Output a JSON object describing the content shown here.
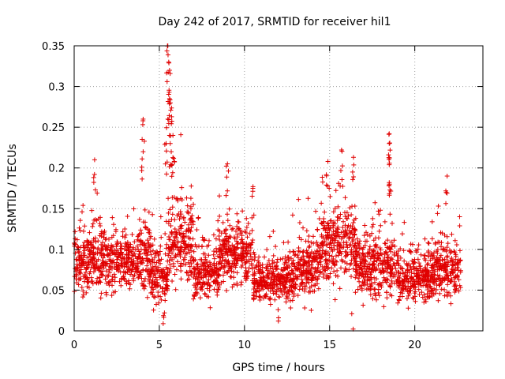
{
  "chart_data": {
    "type": "scatter",
    "title": "Day 242 of 2017, SRMTID for receiver hil1",
    "xlabel": "GPS time / hours",
    "ylabel": "SRMTID / TECUs",
    "xlim": [
      0,
      24
    ],
    "ylim": [
      0,
      0.35
    ],
    "xticks": [
      0,
      5,
      10,
      15,
      20
    ],
    "xtick_labels": [
      "0",
      "5",
      "10",
      "15",
      "20"
    ],
    "yticks": [
      0,
      0.05,
      0.1,
      0.15,
      0.2,
      0.25,
      0.3,
      0.35
    ],
    "ytick_labels": [
      "0",
      "0.05",
      "0.1",
      "0.15",
      "0.2",
      "0.25",
      "0.3",
      "0.35"
    ],
    "grid": true,
    "marker": "+",
    "color": "#e00000",
    "series": [
      {
        "name": "SRMTID",
        "x_range": [
          0,
          22.7
        ],
        "approx_count": 3000,
        "segments": [
          {
            "x": [
              0.0,
              1.0
            ],
            "base": 0.085,
            "spread": 0.03
          },
          {
            "x": [
              1.0,
              2.0
            ],
            "base": 0.09,
            "spread": 0.035
          },
          {
            "x": [
              2.0,
              3.5
            ],
            "base": 0.085,
            "spread": 0.03
          },
          {
            "x": [
              3.5,
              4.5
            ],
            "base": 0.09,
            "spread": 0.035
          },
          {
            "x": [
              4.5,
              5.5
            ],
            "base": 0.07,
            "spread": 0.03
          },
          {
            "x": [
              5.5,
              7.0
            ],
            "base": 0.11,
            "spread": 0.04
          },
          {
            "x": [
              7.0,
              8.5
            ],
            "base": 0.07,
            "spread": 0.025
          },
          {
            "x": [
              8.5,
              10.5
            ],
            "base": 0.095,
            "spread": 0.03
          },
          {
            "x": [
              10.5,
              13.0
            ],
            "base": 0.065,
            "spread": 0.025
          },
          {
            "x": [
              13.0,
              14.5
            ],
            "base": 0.08,
            "spread": 0.03
          },
          {
            "x": [
              14.5,
              16.5
            ],
            "base": 0.105,
            "spread": 0.035
          },
          {
            "x": [
              16.5,
              19.0
            ],
            "base": 0.08,
            "spread": 0.03
          },
          {
            "x": [
              19.0,
              21.0
            ],
            "base": 0.065,
            "spread": 0.025
          },
          {
            "x": [
              21.0,
              22.7
            ],
            "base": 0.075,
            "spread": 0.025
          }
        ],
        "peaks": [
          {
            "x": 4.05,
            "y": 0.26
          },
          {
            "x": 4.05,
            "y": 0.22
          },
          {
            "x": 5.5,
            "y": 0.35
          },
          {
            "x": 5.55,
            "y": 0.33
          },
          {
            "x": 5.6,
            "y": 0.32
          },
          {
            "x": 5.6,
            "y": 0.285
          },
          {
            "x": 5.65,
            "y": 0.28
          },
          {
            "x": 5.5,
            "y": 0.26
          },
          {
            "x": 5.6,
            "y": 0.24
          },
          {
            "x": 5.8,
            "y": 0.24
          },
          {
            "x": 5.4,
            "y": 0.23
          },
          {
            "x": 5.7,
            "y": 0.22
          },
          {
            "x": 1.2,
            "y": 0.21
          },
          {
            "x": 9.0,
            "y": 0.205
          },
          {
            "x": 10.5,
            "y": 0.177
          },
          {
            "x": 14.9,
            "y": 0.208
          },
          {
            "x": 15.7,
            "y": 0.222
          },
          {
            "x": 16.4,
            "y": 0.213
          },
          {
            "x": 18.5,
            "y": 0.242
          },
          {
            "x": 18.5,
            "y": 0.23
          },
          {
            "x": 18.5,
            "y": 0.204
          },
          {
            "x": 18.5,
            "y": 0.182
          },
          {
            "x": 21.9,
            "y": 0.19
          },
          {
            "x": 12.0,
            "y": 0.016
          },
          {
            "x": 16.3,
            "y": 0.021
          },
          {
            "x": 5.3,
            "y": 0.022
          }
        ]
      }
    ]
  }
}
